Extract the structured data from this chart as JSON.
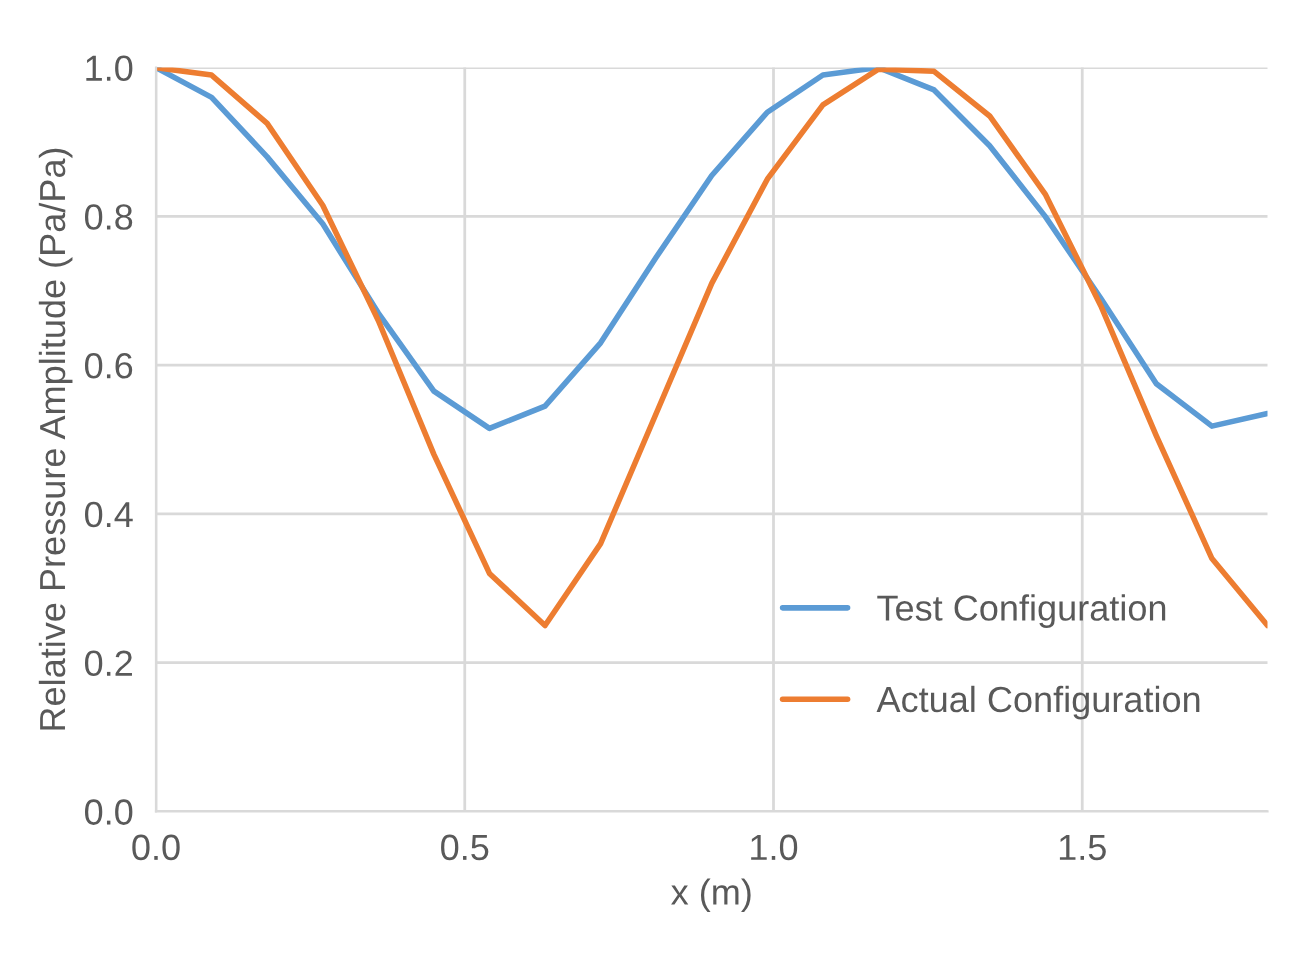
{
  "chart_data": {
    "type": "line",
    "xlabel": "x (m)",
    "ylabel": "Relative Pressure Amplitude (Pa/Pa)",
    "x": [
      0,
      0.09,
      0.18,
      0.27,
      0.36,
      0.45,
      0.54,
      0.63,
      0.72,
      0.81,
      0.9,
      0.99,
      1.08,
      1.17,
      1.26,
      1.35,
      1.44,
      1.53,
      1.62,
      1.71,
      1.8
    ],
    "series": [
      {
        "name": "Test Configuration",
        "color": "#5b9bd5",
        "values": [
          1.0,
          0.96,
          0.88,
          0.79,
          0.67,
          0.565,
          0.515,
          0.545,
          0.63,
          0.745,
          0.855,
          0.94,
          0.99,
          1.0,
          0.97,
          0.895,
          0.8,
          0.69,
          0.575,
          0.518,
          0.535
        ]
      },
      {
        "name": "Actual Configuration",
        "color": "#ed7d31",
        "values": [
          1.0,
          0.99,
          0.925,
          0.815,
          0.66,
          0.48,
          0.32,
          0.25,
          0.36,
          0.535,
          0.71,
          0.85,
          0.95,
          0.998,
          0.995,
          0.935,
          0.83,
          0.68,
          0.505,
          0.34,
          0.25
        ]
      }
    ],
    "xlim": [
      0,
      1.8
    ],
    "xticks": [
      {
        "value": 0,
        "label": "0.0"
      },
      0.5,
      {
        "value": 1,
        "label": "1.0"
      },
      1.5
    ],
    "ylim": [
      0,
      1
    ],
    "yticks": [
      {
        "value": 0,
        "label": "0.0"
      },
      0.2,
      0.4,
      0.6,
      0.8,
      {
        "value": 1,
        "label": "1.0"
      }
    ],
    "grid": true,
    "legend": "bottom right",
    "marker": "none",
    "line_style": "solid"
  }
}
